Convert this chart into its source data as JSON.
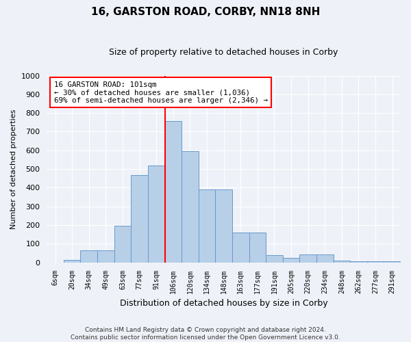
{
  "title": "16, GARSTON ROAD, CORBY, NN18 8NH",
  "subtitle": "Size of property relative to detached houses in Corby",
  "xlabel": "Distribution of detached houses by size in Corby",
  "ylabel": "Number of detached properties",
  "categories": [
    "6sqm",
    "20sqm",
    "34sqm",
    "49sqm",
    "63sqm",
    "77sqm",
    "91sqm",
    "106sqm",
    "120sqm",
    "134sqm",
    "148sqm",
    "163sqm",
    "177sqm",
    "191sqm",
    "205sqm",
    "220sqm",
    "234sqm",
    "248sqm",
    "262sqm",
    "277sqm",
    "291sqm"
  ],
  "values": [
    0,
    12,
    65,
    65,
    197,
    468,
    518,
    755,
    595,
    390,
    390,
    161,
    161,
    40,
    23,
    42,
    42,
    10,
    8,
    5,
    5
  ],
  "bar_color": "#b8cfe8",
  "bar_edge_color": "#6699cc",
  "vline_x_index": 7,
  "vline_color": "red",
  "annotation_text": "16 GARSTON ROAD: 101sqm\n← 30% of detached houses are smaller (1,036)\n69% of semi-detached houses are larger (2,346) →",
  "annotation_box_color": "white",
  "annotation_box_edge": "red",
  "ylim": [
    0,
    1000
  ],
  "yticks": [
    0,
    100,
    200,
    300,
    400,
    500,
    600,
    700,
    800,
    900,
    1000
  ],
  "footer_line1": "Contains HM Land Registry data © Crown copyright and database right 2024.",
  "footer_line2": "Contains public sector information licensed under the Open Government Licence v3.0.",
  "bg_color": "#eef2f8",
  "grid_color": "white"
}
